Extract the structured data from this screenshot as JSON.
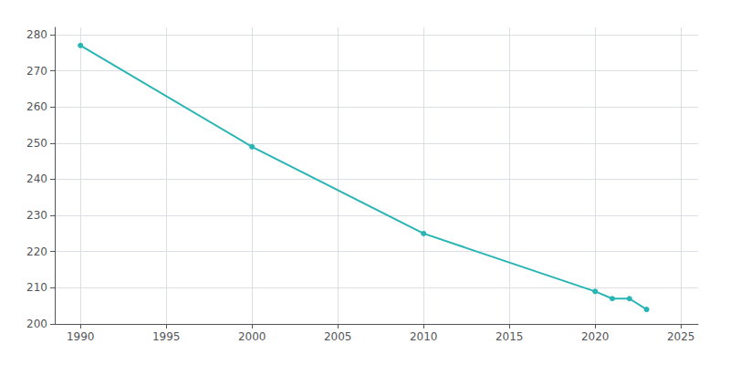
{
  "chart_data": {
    "type": "line",
    "x": [
      1990,
      2000,
      2010,
      2020,
      2021,
      2022,
      2023
    ],
    "values": [
      277,
      249,
      225,
      209,
      207,
      207,
      204
    ],
    "color": "#2ab5b5",
    "marker": "circle",
    "xlim": [
      1988.5,
      2026
    ],
    "ylim": [
      200,
      282
    ],
    "xticks": [
      1990,
      1995,
      2000,
      2005,
      2010,
      2015,
      2020,
      2025
    ],
    "yticks": [
      200,
      210,
      220,
      230,
      240,
      250,
      260,
      270,
      280
    ],
    "grid": true
  }
}
